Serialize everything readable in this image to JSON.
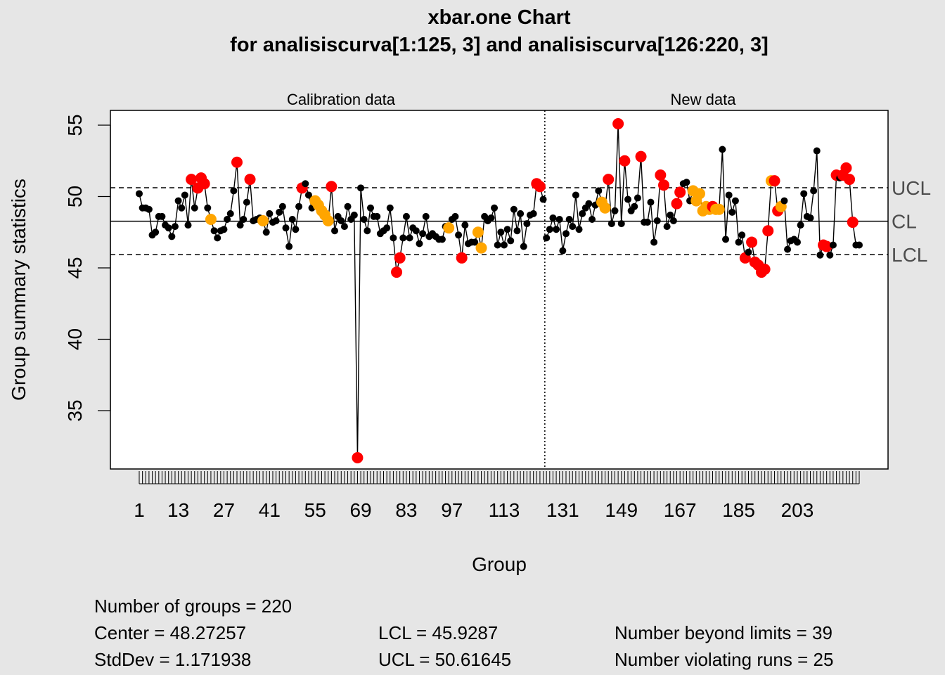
{
  "chart_data": {
    "type": "line",
    "title": "xbar.one Chart",
    "subtitle": "for analisiscurva[1:125, 3] and analisiscurva[126:220, 3]",
    "xlabel": "Group",
    "ylabel": "Group summary statistics",
    "xlim": [
      1,
      220
    ],
    "ylim": [
      31.8,
      56
    ],
    "y_ticks": [
      35,
      40,
      45,
      50,
      55
    ],
    "x_tick_labels": [
      1,
      13,
      27,
      41,
      55,
      69,
      83,
      97,
      113,
      131,
      149,
      167,
      185,
      203
    ],
    "sections": [
      {
        "label": "Calibration data"
      },
      {
        "label": "New data"
      }
    ],
    "section_boundary": 125.5,
    "center": 48.27257,
    "lcl": 45.9287,
    "ucl": 50.61645,
    "limit_labels": {
      "ucl": "UCL",
      "cl": "CL",
      "lcl": "LCL"
    },
    "point_colors": {
      "normal": "#000000",
      "beyond_limits": "#ff0000",
      "violating_runs": "#ffa500"
    },
    "series": [
      {
        "values": [
          50.2,
          49.2,
          49.2,
          49.1,
          47.3,
          47.5,
          48.6,
          48.6,
          48.0,
          47.8,
          47.2,
          47.9,
          49.7,
          49.2,
          50.1,
          48.0,
          51.2,
          49.2,
          50.6,
          51.3,
          50.9,
          49.2,
          48.4,
          47.6,
          47.1,
          47.6,
          47.7,
          48.4,
          48.8,
          50.4,
          52.4,
          48.0,
          48.4,
          49.6,
          51.2,
          48.3,
          48.4,
          48.5,
          48.3,
          47.5,
          48.8,
          48.2,
          48.3,
          48.9,
          49.3,
          47.8,
          46.5,
          48.4,
          47.7,
          49.3,
          50.6,
          50.9,
          50.1,
          49.2,
          49.7,
          49.4,
          49.0,
          48.7,
          48.3,
          50.7,
          47.6,
          48.6,
          48.3,
          47.9,
          49.3,
          48.4,
          48.7,
          31.7,
          50.6,
          48.4,
          47.6,
          49.2,
          48.6,
          48.6,
          47.4,
          47.6,
          47.8,
          49.2,
          47.1,
          44.7,
          45.7,
          47.1,
          48.6,
          47.1,
          47.8,
          47.6,
          46.7,
          47.4,
          48.6,
          47.2,
          47.4,
          47.2,
          47.0,
          47.0,
          47.9,
          47.8,
          48.4,
          48.6,
          47.3,
          45.7,
          48.0,
          46.7,
          46.8,
          46.8,
          47.5,
          46.4,
          48.6,
          48.3,
          48.5,
          49.2,
          46.6,
          47.5,
          46.6,
          47.7,
          46.9,
          49.1,
          47.6,
          48.8,
          46.5,
          48.1,
          48.7,
          48.8,
          50.9,
          50.7,
          49.8,
          47.1,
          47.7,
          48.5,
          47.7,
          48.4,
          46.2,
          47.4,
          48.4,
          47.9,
          50.1,
          47.7,
          48.8,
          49.2,
          49.5,
          48.4,
          49.4,
          50.4,
          49.6,
          49.2,
          51.2,
          48.1,
          49.0,
          55.1,
          48.1,
          52.5,
          49.8,
          49.0,
          49.3,
          49.9,
          52.8,
          48.2,
          48.2,
          49.6,
          46.8,
          48.3,
          51.5,
          50.8,
          47.9,
          48.7,
          48.3,
          49.5,
          50.3,
          50.9,
          51.0,
          49.7,
          50.4,
          49.7,
          50.2,
          49.0,
          49.3,
          49.1,
          49.3,
          49.1,
          49.1,
          53.3,
          47.0,
          50.1,
          48.9,
          49.7,
          46.8,
          47.3,
          45.7,
          46.1,
          46.8,
          45.4,
          45.2,
          44.7,
          44.9,
          47.6,
          51.1,
          51.1,
          49.0,
          49.3,
          49.7,
          46.3,
          46.9,
          47.0,
          46.8,
          48.0,
          50.2,
          48.6,
          48.5,
          50.4,
          53.2,
          45.9,
          46.6,
          46.5,
          45.9,
          46.6,
          51.5,
          51.3,
          51.5,
          52.0,
          51.2,
          48.2,
          46.6,
          46.6
        ],
        "beyond_limits": [
          17,
          19,
          20,
          21,
          31,
          35,
          51,
          60,
          68,
          80,
          81,
          100,
          123,
          124,
          145,
          148,
          150,
          155,
          161,
          162,
          166,
          167,
          177,
          187,
          189,
          190,
          191,
          192,
          193,
          194,
          196,
          197,
          211,
          212,
          215,
          217,
          218,
          219,
          220
        ],
        "violating_runs": [
          23,
          39,
          55,
          56,
          57,
          58,
          59,
          96,
          105,
          106,
          143,
          144,
          171,
          172,
          173,
          174,
          175,
          176,
          177,
          178,
          179,
          195,
          196,
          197,
          198
        ]
      }
    ]
  },
  "stats": {
    "groups": "Number of groups = 220",
    "center": "Center = 48.27257",
    "stddev": "StdDev = 1.171938",
    "lcl": "LCL = 45.9287",
    "ucl": "UCL = 50.61645",
    "beyond": "Number beyond limits = 39",
    "runs": "Number violating runs = 25"
  }
}
